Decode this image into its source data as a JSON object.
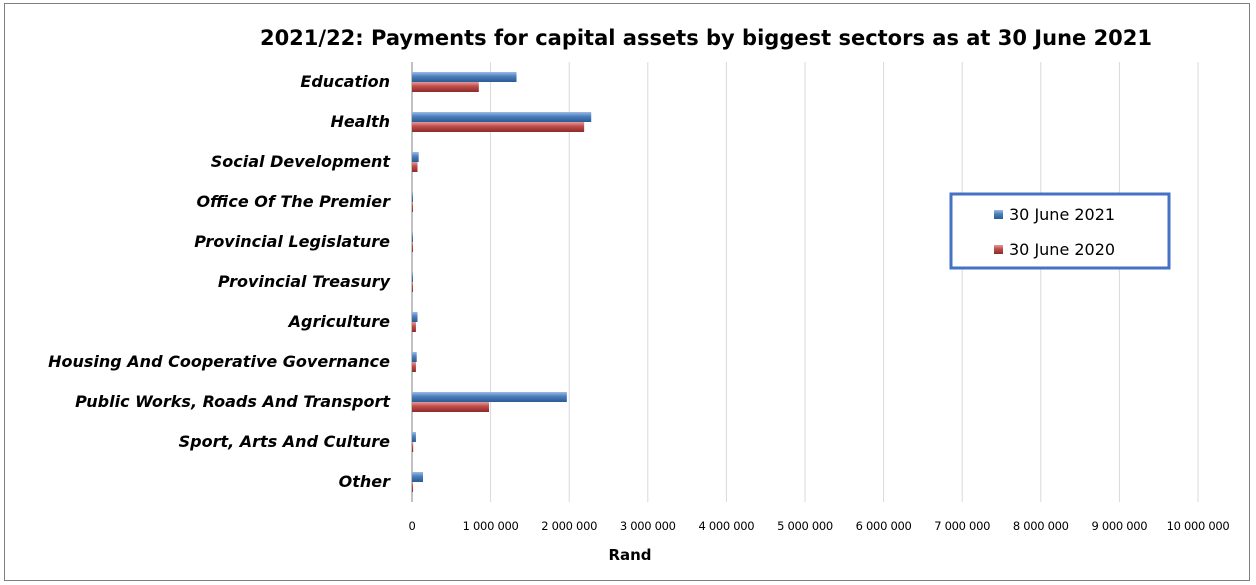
{
  "chart_data": {
    "type": "bar",
    "orientation": "horizontal",
    "title": "2021/22: Payments for capital assets by biggest sectors as at 30 June 2021",
    "xlabel": "Rand",
    "ylabel": "",
    "xlim": [
      0,
      10000000
    ],
    "x_ticks": [
      "0",
      "1 000 000",
      "2 000 000",
      "3 000 000",
      "4 000 000",
      "5 000 000",
      "6 000 000",
      "7 000 000",
      "8 000 000",
      "9 000 000",
      "10 000 000"
    ],
    "grid": true,
    "legend_position": "right",
    "categories": [
      "Education",
      "Health",
      "Social Development",
      "Office Of The Premier",
      "Provincial Legislature",
      "Provincial Treasury",
      "Agriculture",
      "Housing And Cooperative Governance",
      "Public Works, Roads And Transport",
      "Sport, Arts And Culture",
      "Other"
    ],
    "series": [
      {
        "name": "30 June 2021",
        "color": "#4a7ebb",
        "values": [
          1330000,
          2280000,
          85000,
          3000,
          2000,
          2000,
          70000,
          60000,
          1970000,
          50000,
          140000
        ]
      },
      {
        "name": "30 June 2020",
        "color": "#be4b48",
        "values": [
          850000,
          2190000,
          70000,
          2000,
          1000,
          1000,
          50000,
          50000,
          980000,
          15000,
          10000
        ]
      }
    ]
  }
}
